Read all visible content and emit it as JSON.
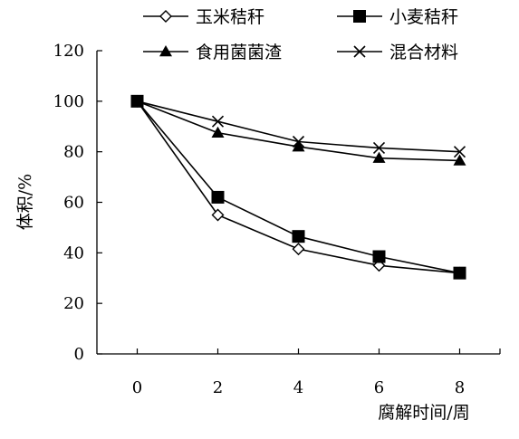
{
  "chart_data": {
    "type": "line",
    "x": [
      0,
      2,
      4,
      6,
      8
    ],
    "series": [
      {
        "name": "玉米秸秆",
        "marker": "diamond-open",
        "values": [
          100,
          55,
          41.5,
          35,
          32
        ]
      },
      {
        "name": "小麦秸秆",
        "marker": "square-filled",
        "values": [
          100,
          62,
          46.5,
          38.5,
          32
        ]
      },
      {
        "name": "食用菌菌渣",
        "marker": "triangle-filled",
        "values": [
          100,
          87.5,
          82,
          77.5,
          76.5
        ]
      },
      {
        "name": "混合材料",
        "marker": "x",
        "values": [
          100,
          92,
          84,
          81.5,
          80
        ]
      }
    ],
    "xlabel": "腐解时间/周",
    "ylabel": "体积/%",
    "xticks": [
      "0",
      "2",
      "4",
      "6",
      "8"
    ],
    "yticks": [
      "0",
      "20",
      "40",
      "60",
      "80",
      "100",
      "120"
    ],
    "xlim": [
      -1,
      9
    ],
    "ylim": [
      0,
      120
    ],
    "grid": false,
    "legend_position": "top",
    "line_color": "#000000"
  }
}
